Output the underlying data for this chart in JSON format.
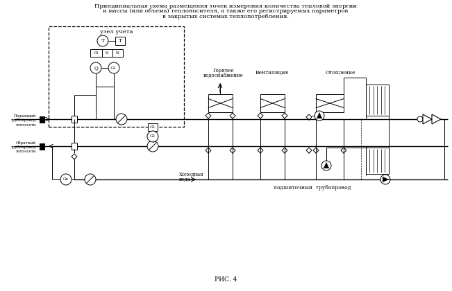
{
  "title_lines": [
    "Принципиальная схема размещения точек измерения количества тепловой энергии",
    "и массы (или объема) теплоносителя, а также его регистрируемых параметров",
    "в закрытых системах теплопотребления."
  ],
  "caption": "РИС. 4",
  "label_uzel": "узел учета",
  "label_supply": [
    "Подающий",
    "трубопровод",
    "теплосети"
  ],
  "label_return": [
    "Обратный",
    "трубопровод",
    "теплосети"
  ],
  "label_hot": [
    "Горячее",
    "водоснабжение"
  ],
  "label_vent": "Вентиляция",
  "label_heat": "Отопление",
  "label_cold": [
    "Холодная",
    "вода"
  ],
  "label_makeup": "подшиточный  трубопровод",
  "bg_color": "#ffffff"
}
